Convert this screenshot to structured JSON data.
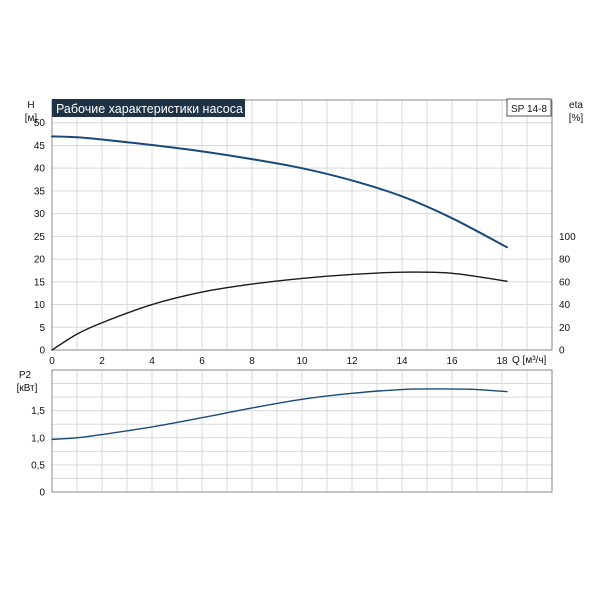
{
  "chart_data": [
    {
      "type": "line",
      "title": "Рабочие характеристики насоса",
      "model_label": "SP 14-8",
      "xlabel": "Q [м³/ч]",
      "ylabel_left": "H",
      "ylabel_left_unit": "[м]",
      "ylabel_right": "eta",
      "ylabel_right_unit": "[%]",
      "xlim": [
        0,
        20
      ],
      "ylim_left": [
        0,
        55
      ],
      "ylim_right": [
        0,
        220
      ],
      "x_ticks": [
        "0",
        "2",
        "4",
        "6",
        "8",
        "10",
        "12",
        "14",
        "16",
        "18"
      ],
      "y_left_ticks": [
        "0",
        "5",
        "10",
        "15",
        "20",
        "25",
        "30",
        "35",
        "40",
        "45",
        "50"
      ],
      "y_right_ticks": [
        "0",
        "20",
        "40",
        "60",
        "80",
        "100"
      ],
      "grid": true,
      "series": [
        {
          "axis": "left",
          "color": "#1a4a7a",
          "x": [
            0,
            1,
            2,
            4,
            6,
            8,
            10,
            12,
            14,
            16,
            18.2
          ],
          "values": [
            47,
            46.8,
            46.3,
            45.1,
            43.7,
            42,
            40,
            37.3,
            33.8,
            29,
            22.6
          ]
        },
        {
          "axis": "right",
          "color": "#1a1a1a",
          "x": [
            0,
            1,
            2,
            4,
            6,
            8,
            10,
            12,
            14,
            16,
            18.2
          ],
          "values": [
            0,
            14,
            24,
            40,
            51,
            58,
            63,
            66.5,
            68.5,
            67.5,
            60.5
          ]
        }
      ]
    },
    {
      "type": "line",
      "ylabel": "P2",
      "ylabel_unit": "[кВт]",
      "xlim": [
        0,
        20
      ],
      "ylim": [
        0,
        2.25
      ],
      "y_ticks": [
        "0",
        "0,5",
        "1,0",
        "1,5"
      ],
      "grid": true,
      "series": [
        {
          "color": "#1a4a7a",
          "x": [
            0,
            1,
            2,
            4,
            6,
            8,
            10,
            12,
            14,
            15.5,
            17,
            18.2
          ],
          "values": [
            0.97,
            1.0,
            1.06,
            1.2,
            1.37,
            1.55,
            1.71,
            1.82,
            1.89,
            1.9,
            1.89,
            1.85
          ]
        }
      ]
    }
  ]
}
